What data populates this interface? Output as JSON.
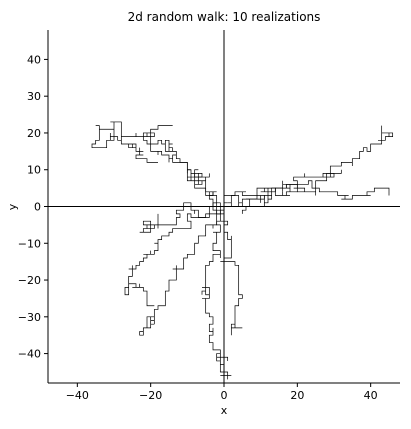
{
  "chart_data": {
    "type": "line",
    "title": "2d random walk: 10 realizations",
    "xlabel": "x",
    "ylabel": "y",
    "xlim": [
      -48,
      48
    ],
    "ylim": [
      -48,
      48
    ],
    "xticks": [
      -40,
      -20,
      0,
      20,
      40
    ],
    "yticks": [
      -40,
      -30,
      -20,
      -10,
      0,
      10,
      20,
      30,
      40
    ],
    "xtick_labels": [
      "−40",
      "−20",
      "0",
      "20",
      "40"
    ],
    "ytick_labels": [
      "−40",
      "−30",
      "−20",
      "−10",
      "0",
      "10",
      "20",
      "30",
      "40"
    ],
    "zero_lines": true,
    "grid": false,
    "legend": "none",
    "n_realizations": 10,
    "step": 1,
    "series_color": "#000000",
    "series": [
      {
        "x": [
          0,
          -4,
          -8,
          -12,
          -16,
          -20,
          -24,
          -29,
          -32,
          -34,
          -30,
          -26,
          -22,
          -18
        ],
        "y": [
          0,
          4,
          8,
          12,
          14,
          17,
          20,
          23,
          21,
          18,
          19,
          16,
          15,
          12
        ]
      },
      {
        "x": [
          0,
          -5,
          -9,
          -13,
          -16,
          -19,
          -22,
          -24,
          -26,
          -27,
          -24,
          -21,
          -19
        ],
        "y": [
          0,
          -2,
          -4,
          -6,
          -8,
          -10,
          -13,
          -16,
          -19,
          -22,
          -21,
          -24,
          -27
        ]
      },
      {
        "x": [
          0,
          -2,
          -5,
          -8,
          -11,
          -14,
          -16,
          -18,
          -20,
          -22,
          -23,
          -21,
          -19
        ],
        "y": [
          0,
          -4,
          -8,
          -12,
          -16,
          -20,
          -24,
          -27,
          -30,
          -33,
          -34,
          -31,
          -29
        ]
      },
      {
        "x": [
          0,
          -1,
          -2,
          -3,
          -4,
          -5,
          -5,
          -4,
          -3,
          -2,
          -1,
          1,
          1,
          -1
        ],
        "y": [
          0,
          -4,
          -8,
          -12,
          -16,
          -20,
          -25,
          -30,
          -35,
          -39,
          -43,
          -45,
          -47,
          -46
        ]
      },
      {
        "x": [
          0,
          1,
          2,
          3,
          4,
          4,
          3,
          2,
          5
        ],
        "y": [
          0,
          -5,
          -10,
          -15,
          -20,
          -25,
          -30,
          -35,
          -33
        ]
      },
      {
        "x": [
          0,
          5,
          10,
          15,
          20,
          25,
          30,
          35,
          40,
          44,
          46,
          43
        ],
        "y": [
          0,
          3,
          4,
          5,
          4,
          5,
          8,
          12,
          16,
          18,
          20,
          22
        ]
      },
      {
        "x": [
          0,
          4,
          8,
          12,
          16,
          20,
          24,
          28,
          32,
          35,
          39,
          43,
          45
        ],
        "y": [
          0,
          1,
          2,
          3,
          4,
          5,
          5,
          4,
          3,
          2,
          4,
          5,
          3
        ]
      },
      {
        "x": [
          0,
          4,
          8,
          12,
          16,
          20,
          24,
          28,
          32
        ],
        "y": [
          0,
          1,
          2,
          4,
          6,
          7,
          8,
          9,
          10
        ]
      },
      {
        "x": [
          0,
          -4,
          -8,
          -12,
          -16,
          -20,
          -23,
          -21,
          -18
        ],
        "y": [
          0,
          -1,
          -2,
          -3,
          -5,
          -6,
          -7,
          -4,
          -2
        ]
      },
      {
        "x": [
          0,
          -3,
          -6,
          -9,
          -13,
          -17,
          -20,
          -18,
          -14
        ],
        "y": [
          0,
          3,
          6,
          10,
          14,
          17,
          20,
          22,
          22
        ]
      }
    ]
  }
}
